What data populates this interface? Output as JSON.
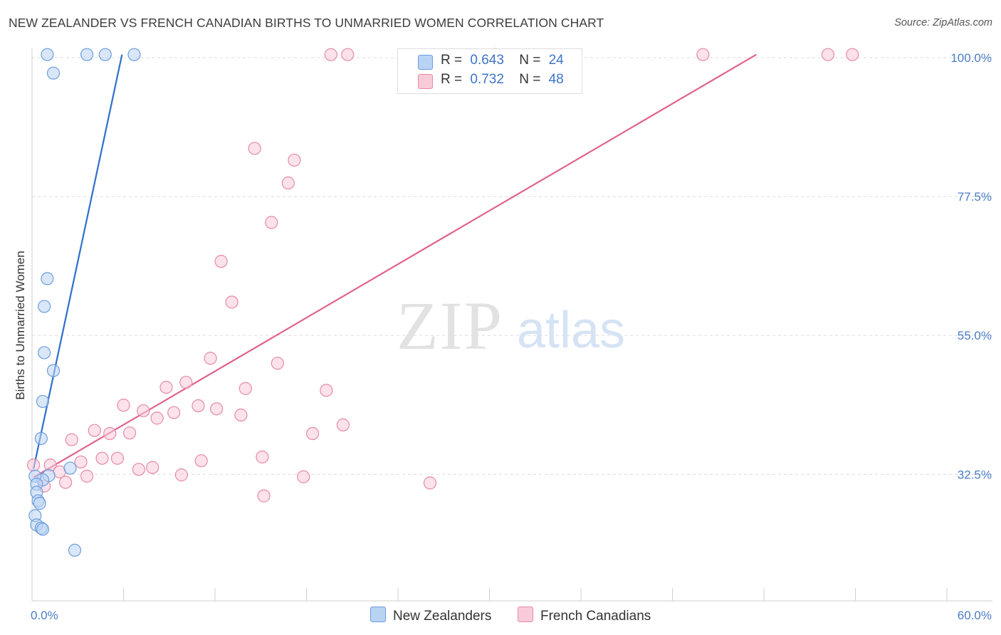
{
  "title": "NEW ZEALANDER VS FRENCH CANADIAN BIRTHS TO UNMARRIED WOMEN CORRELATION CHART",
  "source": "Source: ZipAtlas.com",
  "watermark": {
    "zip": "ZIP",
    "atlas": "atlas"
  },
  "legend": {
    "r_label": "R =",
    "n_label": "N =",
    "rows": [
      {
        "r": "0.643",
        "n": "24",
        "color": "#a9c8ef",
        "stroke": "#6c9de0"
      },
      {
        "r": "0.732",
        "n": "48",
        "color": "#f7bfd0",
        "stroke": "#e68aa8"
      }
    ]
  },
  "bottom_legend": [
    {
      "label": "New Zealanders",
      "color": "#b9d3f3",
      "stroke": "#6c9de0"
    },
    {
      "label": "French Canadians",
      "color": "#f9cbd9",
      "stroke": "#e68aa8"
    }
  ],
  "chart_data": {
    "type": "scatter",
    "title": "NEW ZEALANDER VS FRENCH CANADIAN BIRTHS TO UNMARRIED WOMEN CORRELATION CHART",
    "xlabel": "",
    "ylabel": "Births to Unmarried Women",
    "xlim": [
      0,
      60
    ],
    "ylim": [
      12,
      101.5
    ],
    "x_tick_labels": [
      {
        "value": 0,
        "label": "0.0%"
      },
      {
        "value": 60,
        "label": "60.0%"
      }
    ],
    "y_tick_labels": [
      {
        "value": 32.5,
        "label": "32.5%"
      },
      {
        "value": 55.0,
        "label": "55.0%"
      },
      {
        "value": 77.5,
        "label": "77.5%"
      },
      {
        "value": 100.0,
        "label": "100.0%"
      }
    ],
    "grid": true,
    "series": [
      {
        "name": "New Zealanders",
        "color": "#6c9de0",
        "fill": "#b9d3f3",
        "trend": {
          "x": [
            0.1,
            5.9
          ],
          "y": [
            33.4,
            100.5
          ],
          "color": "#2f6fcb"
        },
        "points": [
          [
            1.0,
            100.5
          ],
          [
            3.6,
            100.5
          ],
          [
            4.8,
            100.5
          ],
          [
            6.7,
            100.5
          ],
          [
            1.4,
            97.5
          ],
          [
            1.0,
            64.2
          ],
          [
            0.8,
            59.7
          ],
          [
            0.8,
            52.2
          ],
          [
            1.4,
            49.3
          ],
          [
            0.7,
            44.3
          ],
          [
            0.6,
            38.3
          ],
          [
            2.5,
            33.5
          ],
          [
            1.1,
            32.3
          ],
          [
            0.7,
            31.6
          ],
          [
            0.2,
            32.2
          ],
          [
            0.3,
            30.9
          ],
          [
            0.3,
            29.6
          ],
          [
            0.4,
            28.2
          ],
          [
            0.5,
            27.8
          ],
          [
            0.2,
            25.8
          ],
          [
            0.3,
            24.3
          ],
          [
            0.6,
            23.8
          ],
          [
            0.7,
            23.6
          ],
          [
            2.8,
            20.2
          ]
        ]
      },
      {
        "name": "French Canadians",
        "color": "#e68aa8",
        "fill": "#f9cbd9",
        "trend": {
          "x": [
            0.1,
            47.5
          ],
          "y": [
            32.0,
            100.5
          ],
          "color": "#e0628d"
        },
        "points": [
          [
            19.6,
            100.5
          ],
          [
            20.7,
            100.5
          ],
          [
            30.4,
            100.5
          ],
          [
            44.0,
            100.5
          ],
          [
            52.2,
            100.5
          ],
          [
            53.8,
            100.5
          ],
          [
            14.6,
            85.3
          ],
          [
            17.2,
            83.4
          ],
          [
            16.8,
            79.7
          ],
          [
            15.7,
            73.3
          ],
          [
            12.4,
            67.0
          ],
          [
            13.1,
            60.4
          ],
          [
            11.7,
            51.3
          ],
          [
            16.1,
            50.5
          ],
          [
            10.1,
            47.4
          ],
          [
            8.8,
            46.6
          ],
          [
            14.0,
            46.4
          ],
          [
            19.3,
            46.1
          ],
          [
            6.0,
            43.7
          ],
          [
            7.3,
            42.8
          ],
          [
            9.3,
            42.5
          ],
          [
            10.9,
            43.6
          ],
          [
            12.1,
            43.1
          ],
          [
            13.7,
            42.1
          ],
          [
            8.2,
            41.6
          ],
          [
            20.4,
            40.5
          ],
          [
            4.1,
            39.6
          ],
          [
            5.1,
            39.1
          ],
          [
            6.4,
            39.2
          ],
          [
            18.4,
            39.1
          ],
          [
            2.6,
            38.1
          ],
          [
            4.6,
            35.1
          ],
          [
            5.6,
            35.1
          ],
          [
            3.2,
            34.5
          ],
          [
            11.1,
            34.7
          ],
          [
            15.1,
            35.3
          ],
          [
            7.0,
            33.3
          ],
          [
            7.9,
            33.6
          ],
          [
            1.2,
            34.0
          ],
          [
            0.1,
            34.0
          ],
          [
            1.8,
            32.9
          ],
          [
            3.6,
            32.2
          ],
          [
            9.8,
            32.4
          ],
          [
            17.8,
            32.1
          ],
          [
            2.2,
            31.2
          ],
          [
            0.8,
            30.6
          ],
          [
            26.1,
            31.1
          ],
          [
            15.2,
            29.0
          ]
        ]
      }
    ]
  }
}
